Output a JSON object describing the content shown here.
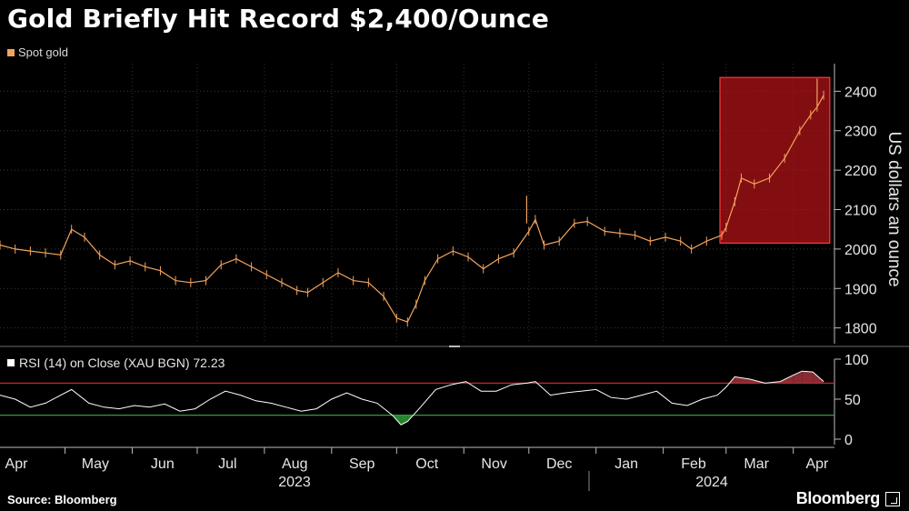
{
  "title": "Gold Briefly Hit Record $2,400/Ounce",
  "legend": {
    "label": "Spot gold",
    "color": "#f2a35e"
  },
  "source": "Source: Bloomberg",
  "brand": "Bloomberg",
  "colors": {
    "background": "#000000",
    "price": "#f2a35e",
    "highlight": "#b3141a",
    "rsi_line": "#ffffff",
    "overbought": "#c62828",
    "oversold": "#2e9e3a"
  },
  "chart_data": [
    {
      "type": "line",
      "title": "",
      "xlabel": "",
      "ylabel": "US dollars an ounce",
      "ylim": [
        1760,
        2470
      ],
      "yticks": [
        1800,
        1900,
        2000,
        2100,
        2200,
        2300,
        2400
      ],
      "axis_side": "right",
      "x_month_labels": [
        "Apr",
        "May",
        "Jun",
        "Jul",
        "Aug",
        "Sep",
        "Oct",
        "Nov",
        "Dec",
        "Jan",
        "Feb",
        "Mar",
        "Apr"
      ],
      "x_year_labels": [
        "2023",
        "2024"
      ],
      "series": [
        {
          "name": "Spot gold",
          "x": [
            "2023-04-01",
            "2023-04-08",
            "2023-04-15",
            "2023-04-22",
            "2023-04-29",
            "2023-05-04",
            "2023-05-10",
            "2023-05-17",
            "2023-05-24",
            "2023-05-31",
            "2023-06-07",
            "2023-06-14",
            "2023-06-21",
            "2023-06-28",
            "2023-07-05",
            "2023-07-12",
            "2023-07-19",
            "2023-07-26",
            "2023-08-02",
            "2023-08-09",
            "2023-08-16",
            "2023-08-21",
            "2023-08-28",
            "2023-09-04",
            "2023-09-11",
            "2023-09-18",
            "2023-09-25",
            "2023-10-01",
            "2023-10-06",
            "2023-10-10",
            "2023-10-14",
            "2023-10-20",
            "2023-10-27",
            "2023-11-03",
            "2023-11-10",
            "2023-11-17",
            "2023-11-24",
            "2023-12-01",
            "2023-12-04",
            "2023-12-08",
            "2023-12-15",
            "2023-12-22",
            "2023-12-28",
            "2024-01-05",
            "2024-01-12",
            "2024-01-19",
            "2024-01-26",
            "2024-02-02",
            "2024-02-09",
            "2024-02-14",
            "2024-02-21",
            "2024-02-28",
            "2024-03-01",
            "2024-03-05",
            "2024-03-08",
            "2024-03-14",
            "2024-03-21",
            "2024-03-28",
            "2024-04-04",
            "2024-04-09",
            "2024-04-12",
            "2024-04-15"
          ],
          "y": [
            2010,
            2000,
            1995,
            1990,
            1985,
            2050,
            2030,
            1985,
            1960,
            1970,
            1955,
            1945,
            1920,
            1915,
            1920,
            1960,
            1975,
            1955,
            1935,
            1915,
            1895,
            1890,
            1915,
            1940,
            1920,
            1915,
            1880,
            1825,
            1815,
            1860,
            1920,
            1975,
            1995,
            1980,
            1950,
            1975,
            1990,
            2045,
            2075,
            2010,
            2020,
            2065,
            2070,
            2045,
            2040,
            2035,
            2020,
            2030,
            2020,
            2000,
            2020,
            2035,
            2055,
            2120,
            2180,
            2165,
            2180,
            2230,
            2300,
            2340,
            2360,
            2390
          ]
        }
      ]
    },
    {
      "type": "line",
      "title": "",
      "ylabel": "",
      "ylim": [
        0,
        100
      ],
      "yticks": [
        0,
        50,
        100
      ],
      "overbought": 70,
      "oversold": 30,
      "series": [
        {
          "name": "RSI (14)  on Close (XAU BGN) 72.23",
          "x": [
            "2023-04-01",
            "2023-04-08",
            "2023-04-15",
            "2023-04-22",
            "2023-04-29",
            "2023-05-04",
            "2023-05-12",
            "2023-05-19",
            "2023-05-26",
            "2023-06-02",
            "2023-06-09",
            "2023-06-16",
            "2023-06-23",
            "2023-06-30",
            "2023-07-07",
            "2023-07-14",
            "2023-07-21",
            "2023-07-28",
            "2023-08-04",
            "2023-08-11",
            "2023-08-18",
            "2023-08-25",
            "2023-09-01",
            "2023-09-08",
            "2023-09-15",
            "2023-09-22",
            "2023-09-29",
            "2023-10-03",
            "2023-10-06",
            "2023-10-12",
            "2023-10-19",
            "2023-10-26",
            "2023-11-02",
            "2023-11-09",
            "2023-11-16",
            "2023-11-23",
            "2023-11-30",
            "2023-12-04",
            "2023-12-11",
            "2023-12-18",
            "2023-12-25",
            "2024-01-01",
            "2024-01-08",
            "2024-01-15",
            "2024-01-22",
            "2024-01-29",
            "2024-02-05",
            "2024-02-12",
            "2024-02-19",
            "2024-02-26",
            "2024-03-01",
            "2024-03-05",
            "2024-03-12",
            "2024-03-19",
            "2024-03-26",
            "2024-04-01",
            "2024-04-05",
            "2024-04-10",
            "2024-04-15"
          ],
          "y": [
            55,
            50,
            40,
            45,
            55,
            62,
            45,
            40,
            38,
            42,
            40,
            44,
            35,
            38,
            50,
            60,
            55,
            48,
            45,
            40,
            35,
            38,
            50,
            58,
            50,
            45,
            30,
            18,
            22,
            40,
            62,
            68,
            72,
            60,
            60,
            68,
            70,
            72,
            55,
            58,
            60,
            62,
            52,
            50,
            55,
            60,
            45,
            42,
            50,
            55,
            65,
            78,
            75,
            70,
            72,
            80,
            85,
            84,
            72
          ]
        }
      ]
    }
  ]
}
